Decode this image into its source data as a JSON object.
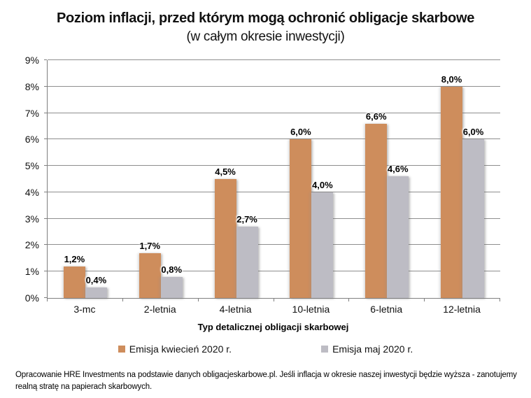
{
  "header": {
    "title": "Poziom inflacji, przed którym mogą ochronić obligacje skarbowe",
    "subtitle": "(w całym okresie inwestycji)"
  },
  "chart_data": {
    "type": "bar",
    "categories": [
      "3-mc",
      "2-letnia",
      "4-letnia",
      "10-letnia",
      "6-letnia",
      "12-letnia"
    ],
    "series": [
      {
        "name": "Emisja kwiecień 2020 r.",
        "color": "#CE8D5C",
        "values": [
          1.2,
          1.7,
          4.5,
          6.0,
          6.6,
          8.0
        ],
        "labels": [
          "1,2%",
          "1,7%",
          "4,5%",
          "6,0%",
          "6,6%",
          "8,0%"
        ]
      },
      {
        "name": "Emisja maj 2020 r.",
        "color": "#BDBCC4",
        "values": [
          0.4,
          0.8,
          2.7,
          4.0,
          4.6,
          6.0
        ],
        "labels": [
          "0,4%",
          "0,8%",
          "2,7%",
          "4,0%",
          "4,6%",
          "6,0%"
        ]
      }
    ],
    "title": "Poziom inflacji, przed którym mogą ochronić obligacje skarbowe",
    "subtitle": "(w całym okresie inwestycji)",
    "xlabel": "Typ detalicznej obligacji skarbowej",
    "ylabel": "",
    "ylim": [
      0,
      9
    ],
    "ytick_step": 1,
    "ytick_labels": [
      "0%",
      "1%",
      "2%",
      "3%",
      "4%",
      "5%",
      "6%",
      "7%",
      "8%",
      "9%"
    ],
    "grid": true,
    "legend_position": "bottom",
    "bar_label_format": "percent-comma"
  },
  "colors": {
    "series1": "#CE8D5C",
    "series2": "#BDBCC4",
    "gridline": "#8e8e8e",
    "axis": "#7f7f7f",
    "text": "#111111"
  },
  "footer": {
    "note": "Opracowanie HRE Investments na podstawie danych obligacjeskarbowe.pl. Jeśli inflacja w okresie naszej inwestycji będzie wyższa - zanotujemy realną stratę na papierach skarbowych."
  }
}
